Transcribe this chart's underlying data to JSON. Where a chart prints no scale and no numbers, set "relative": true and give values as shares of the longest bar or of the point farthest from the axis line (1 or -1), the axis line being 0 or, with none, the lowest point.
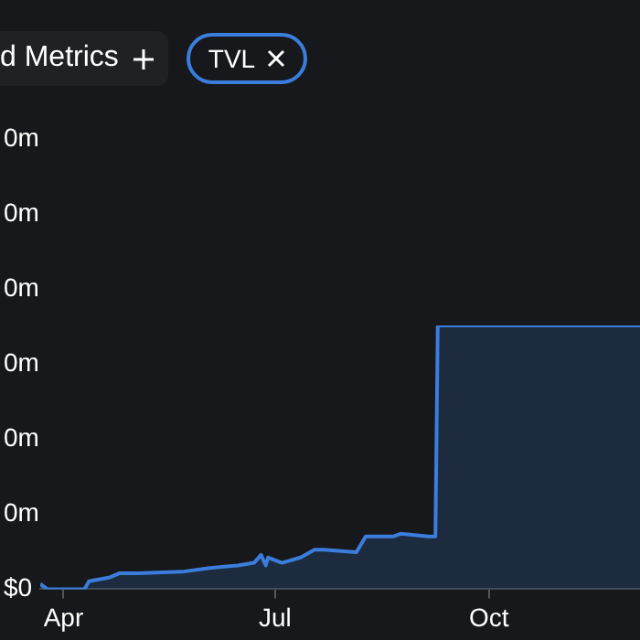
{
  "chart_data": {
    "type": "area",
    "relative": true,
    "legend": "top left",
    "annotations": [
      "d Metrics",
      "0m",
      "0m",
      "0m",
      "0m",
      "0m",
      "0m",
      "$0"
    ],
    "x": [
      "--03-22",
      "--03-25",
      "--04-10",
      "--04-12",
      "--04-21",
      "--04-25",
      "--05-03",
      "--05-22",
      "--06-03",
      "--06-15",
      "--06-22",
      "--06-25",
      "--06-27",
      "--06-28",
      "--07-04",
      "--07-12",
      "--07-18",
      "--07-22",
      "--08-05",
      "--08-09",
      "--08-21",
      "--08-24",
      "--09-05",
      "--09-08",
      "--09-09",
      "--12-05"
    ],
    "xlim": [
      "--03-22",
      "--12-05"
    ],
    "xticks": [
      {
        "value": "--04-01",
        "label": "Apr"
      },
      {
        "value": "--07-01",
        "label": "Jul"
      },
      {
        "value": "--10-01",
        "label": "Oct"
      }
    ],
    "series": [
      {
        "name": "TVL",
        "color": "#3b7ddd",
        "values": [
          0.02,
          0,
          0,
          0.03,
          0.045,
          0.06,
          0.06,
          0.066,
          0.08,
          0.09,
          0.1,
          0.13,
          0.09,
          0.12,
          0.1,
          0.12,
          0.15,
          0.15,
          0.14,
          0.2,
          0.2,
          0.21,
          0.2,
          0.2,
          1,
          1
        ]
      }
    ]
  }
}
